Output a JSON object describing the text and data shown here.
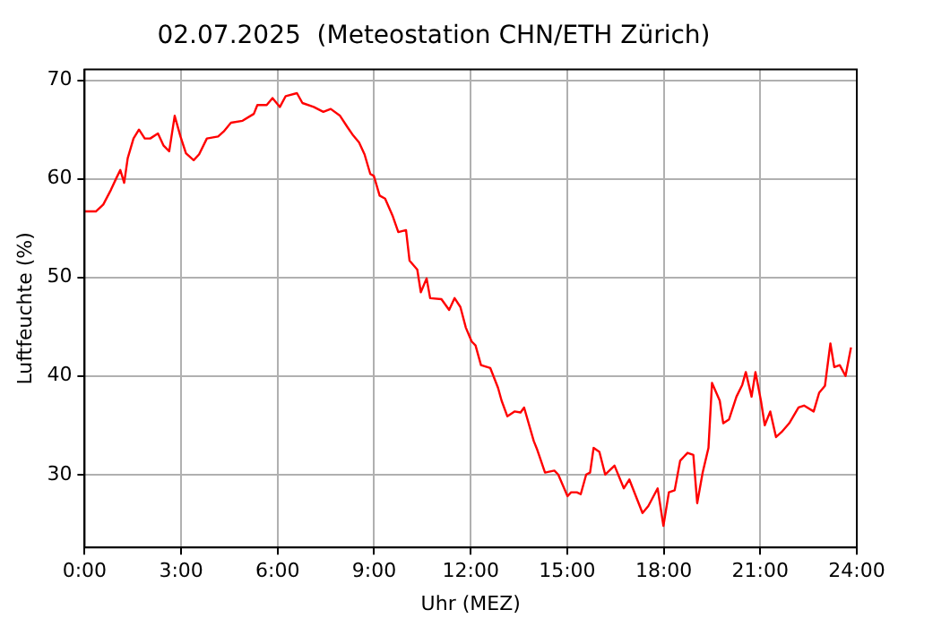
{
  "chart_data": {
    "type": "line",
    "title": "02.07.2025  (Meteostation CHN/ETH Zürich)",
    "xlabel": "Uhr (MEZ)",
    "ylabel": "Luftfeuchte (%)",
    "x": [
      0,
      0.35,
      0.58,
      0.82,
      0.99,
      1.11,
      1.23,
      1.34,
      1.52,
      1.69,
      1.87,
      2.04,
      2.28,
      2.45,
      2.63,
      2.8,
      2.98,
      3.15,
      3.39,
      3.56,
      3.8,
      4.15,
      4.32,
      4.55,
      4.91,
      5.26,
      5.37,
      5.66,
      5.84,
      6.07,
      6.25,
      6.6,
      6.77,
      7.12,
      7.42,
      7.65,
      7.94,
      8.18,
      8.35,
      8.53,
      8.7,
      8.88,
      8.99,
      9.17,
      9.34,
      9.58,
      9.75,
      9.99,
      10.1,
      10.34,
      10.45,
      10.63,
      10.74,
      11.09,
      11.33,
      11.5,
      11.68,
      11.85,
      12.03,
      12.15,
      12.32,
      12.61,
      12.85,
      12.96,
      13.14,
      13.37,
      13.55,
      13.66,
      13.96,
      14.07,
      14.31,
      14.6,
      14.72,
      15.01,
      15.12,
      15.3,
      15.42,
      15.59,
      15.71,
      15.82,
      16,
      16.18,
      16.47,
      16.76,
      16.93,
      17.17,
      17.34,
      17.52,
      17.81,
      17.99,
      18.16,
      18.34,
      18.51,
      18.74,
      18.92,
      19.04,
      19.21,
      19.39,
      19.5,
      19.74,
      19.85,
      20.03,
      20.26,
      20.44,
      20.55,
      20.73,
      20.85,
      21.02,
      21.14,
      21.31,
      21.49,
      21.66,
      21.9,
      22.01,
      22.19,
      22.36,
      22.66,
      22.83,
      23.01,
      23.18,
      23.3,
      23.47,
      23.65,
      23.82
    ],
    "series": [
      {
        "color": "#ff0000",
        "values": [
          56.7,
          56.7,
          57.4,
          58.9,
          60.1,
          60.9,
          59.6,
          62.1,
          64.1,
          65,
          64.1,
          64.1,
          64.6,
          63.4,
          62.8,
          66.4,
          64.3,
          62.6,
          61.9,
          62.5,
          64.1,
          64.3,
          64.8,
          65.7,
          65.9,
          66.6,
          67.5,
          67.5,
          68.2,
          67.3,
          68.4,
          68.7,
          67.7,
          67.3,
          66.8,
          67.1,
          66.4,
          65.2,
          64.4,
          63.7,
          62.5,
          60.5,
          60.3,
          58.3,
          58,
          56.2,
          54.6,
          54.8,
          51.7,
          50.8,
          48.5,
          49.9,
          47.9,
          47.8,
          46.7,
          47.9,
          47,
          44.9,
          43.5,
          43.1,
          41.1,
          40.8,
          38.8,
          37.5,
          35.9,
          36.4,
          36.3,
          36.8,
          33.4,
          32.5,
          30.2,
          30.4,
          30,
          27.8,
          28.2,
          28.2,
          28,
          30,
          30.2,
          32.7,
          32.3,
          30,
          30.9,
          28.6,
          29.5,
          27.5,
          26.1,
          26.8,
          28.6,
          24.8,
          28.2,
          28.4,
          31.4,
          32.2,
          32,
          27.1,
          30.2,
          32.7,
          39.3,
          37.5,
          35.2,
          35.6,
          37.9,
          39.1,
          40.4,
          37.9,
          40.4,
          37.5,
          35,
          36.4,
          33.8,
          34.3,
          35.2,
          35.8,
          36.8,
          37,
          36.4,
          38.3,
          39,
          43.3,
          40.9,
          41.1,
          40,
          42.9
        ]
      }
    ],
    "xlim": [
      0,
      24
    ],
    "xticks": [
      {
        "value": 0,
        "label": "0:00"
      },
      {
        "value": 3,
        "label": "3:00"
      },
      {
        "value": 6,
        "label": "6:00"
      },
      {
        "value": 9,
        "label": "9:00"
      },
      {
        "value": 12,
        "label": "12:00"
      },
      {
        "value": 15,
        "label": "15:00"
      },
      {
        "value": 18,
        "label": "18:00"
      },
      {
        "value": 21,
        "label": "21:00"
      },
      {
        "value": 24,
        "label": "24:00"
      }
    ],
    "ylim": [
      22.6,
      71.1
    ],
    "yticks": [
      30,
      40,
      50,
      60,
      70
    ],
    "grid": true,
    "marker": "none",
    "line_style": "solid"
  }
}
